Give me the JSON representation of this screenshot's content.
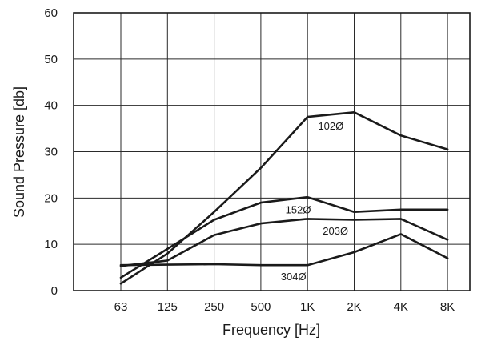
{
  "chart_data": {
    "type": "line",
    "xlabel": "Frequency [Hz]",
    "ylabel": "Sound Pressure [db]",
    "categories": [
      "63",
      "125",
      "250",
      "500",
      "1K",
      "2K",
      "4K",
      "8K"
    ],
    "ylim": [
      0,
      60
    ],
    "yticks": [
      0,
      10,
      20,
      30,
      40,
      50,
      60
    ],
    "grid": true,
    "series": [
      {
        "name": "102Ø",
        "label_at": 4.5,
        "values": [
          1.5,
          8,
          17,
          26.5,
          37.5,
          38.5,
          33.5,
          30.5
        ]
      },
      {
        "name": "152Ø",
        "label_at": 3.8,
        "values": [
          2.8,
          9,
          15.3,
          19,
          20.2,
          17,
          17.5,
          17.5
        ]
      },
      {
        "name": "203Ø",
        "label_at": 4.6,
        "values": [
          5.3,
          6.5,
          12,
          14.5,
          15.5,
          15.3,
          15.5,
          11
        ]
      },
      {
        "name": "304Ø",
        "label_at": 3.7,
        "values": [
          5.5,
          5.6,
          5.7,
          5.5,
          5.5,
          8.3,
          12.2,
          7
        ]
      }
    ]
  }
}
